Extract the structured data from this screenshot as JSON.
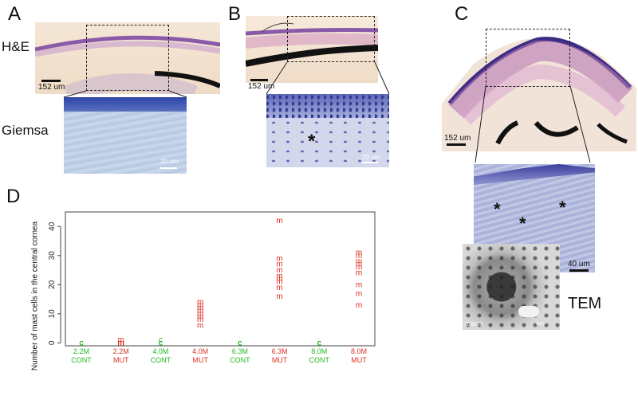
{
  "panels": {
    "A": "A",
    "B": "B",
    "C": "C",
    "D": "D"
  },
  "labels": {
    "he": "H&E",
    "giemsa": "Giemsa",
    "tem": "TEM",
    "asterisk": "*"
  },
  "scalebars": {
    "a_he": "152 um",
    "a_giemsa": "20 um",
    "b_he": "152 um",
    "b_giemsa": "20 um",
    "c_he": "152 um",
    "c_giemsa": "40 um",
    "tem_mag": "10000X",
    "tem_bar": "2um"
  },
  "colors": {
    "cont": "#22bb22",
    "mut": "#dd3322",
    "he_stain": "#8a5aa8",
    "giemsa_stain": "#3d57b0"
  },
  "chart_data": {
    "type": "scatter",
    "ylabel": "Number of mast cells in the central cornea",
    "ylim": [
      -1,
      45
    ],
    "yticks": [
      0,
      10,
      20,
      30,
      40
    ],
    "categories": [
      {
        "age": "2.2M",
        "group": "CONT"
      },
      {
        "age": "2.2M",
        "group": "MUT"
      },
      {
        "age": "4.0M",
        "group": "CONT"
      },
      {
        "age": "4.0M",
        "group": "MUT"
      },
      {
        "age": "6.3M",
        "group": "CONT"
      },
      {
        "age": "6.3M",
        "group": "MUT"
      },
      {
        "age": "8.0M",
        "group": "CONT"
      },
      {
        "age": "8.0M",
        "group": "MUT"
      }
    ],
    "series": [
      {
        "marker": "c",
        "values": [
          [
            0,
            0,
            0,
            0,
            0,
            0
          ],
          [],
          [
            0,
            0,
            0,
            0,
            1
          ],
          [],
          [
            0,
            0,
            0,
            0,
            0
          ],
          [],
          [
            0,
            0,
            0,
            0,
            0
          ],
          []
        ]
      },
      {
        "marker": "m",
        "values": [
          [],
          [
            0,
            0,
            0,
            0,
            1
          ],
          [],
          [
            6,
            8,
            9,
            10,
            11,
            12,
            13,
            14
          ],
          [],
          [
            16,
            19,
            21,
            22,
            23,
            25,
            27,
            29,
            42
          ],
          [],
          [
            13,
            17,
            20,
            24,
            26,
            27,
            28,
            30,
            31
          ]
        ]
      }
    ]
  }
}
